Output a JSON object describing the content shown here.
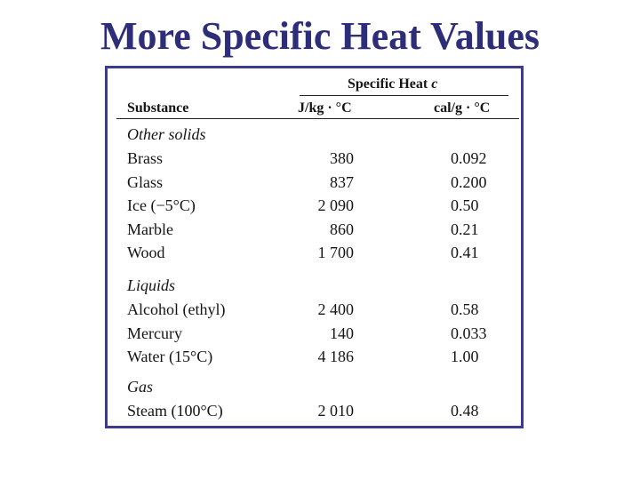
{
  "title": "More Specific Heat Values",
  "table": {
    "group_header": "Specific Heat",
    "group_header_symbol": "c",
    "columns": {
      "substance": "Substance",
      "si_unit": "J/kg · °C",
      "cal_unit": "cal/g · °C"
    },
    "sections": [
      {
        "name": "Other solids",
        "rows": [
          {
            "substance": "Brass",
            "si": "380",
            "cal": "0.092"
          },
          {
            "substance": "Glass",
            "si": "837",
            "cal": "0.200"
          },
          {
            "substance": "Ice (−5°C)",
            "si": "2 090",
            "cal": "0.50"
          },
          {
            "substance": "Marble",
            "si": "860",
            "cal": "0.21"
          },
          {
            "substance": "Wood",
            "si": "1 700",
            "cal": "0.41"
          }
        ]
      },
      {
        "name": "Liquids",
        "rows": [
          {
            "substance": "Alcohol (ethyl)",
            "si": "2 400",
            "cal": "0.58"
          },
          {
            "substance": "Mercury",
            "si": "140",
            "cal": "0.033"
          },
          {
            "substance": "Water (15°C)",
            "si": "4 186",
            "cal": "1.00"
          }
        ]
      },
      {
        "name": "Gas",
        "rows": [
          {
            "substance": "Steam (100°C)",
            "si": "2 010",
            "cal": "0.48"
          }
        ]
      }
    ]
  }
}
